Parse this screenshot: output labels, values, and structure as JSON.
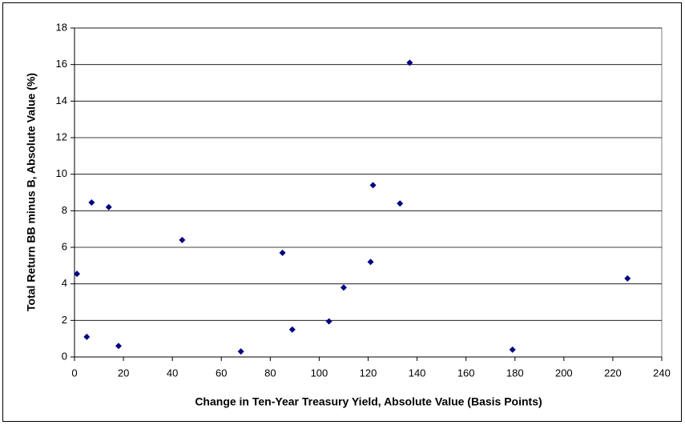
{
  "chart_data": {
    "type": "scatter",
    "x_label": "Change in Ten-Year Treasury Yield, Absolute Value (Basis Points)",
    "y_label": "Total Return BB minus B, Absolute Value (%)",
    "series": [
      {
        "color": "#000080",
        "x": [
          1,
          5,
          7,
          14,
          18,
          44,
          68,
          85,
          89,
          104,
          110,
          121,
          122,
          133,
          137,
          179,
          226
        ],
        "values": [
          4.55,
          1.1,
          8.45,
          8.2,
          0.6,
          6.4,
          0.3,
          5.7,
          1.5,
          1.95,
          3.8,
          5.2,
          9.4,
          8.4,
          16.1,
          0.4,
          4.3
        ]
      }
    ],
    "xlim": [
      0,
      240
    ],
    "xticks": [
      0,
      20,
      40,
      60,
      80,
      100,
      120,
      140,
      160,
      180,
      200,
      220,
      240
    ],
    "ylim": [
      0,
      18
    ],
    "yticks": [
      0,
      2,
      4,
      6,
      8,
      10,
      12,
      14,
      16,
      18
    ],
    "grid": true
  }
}
